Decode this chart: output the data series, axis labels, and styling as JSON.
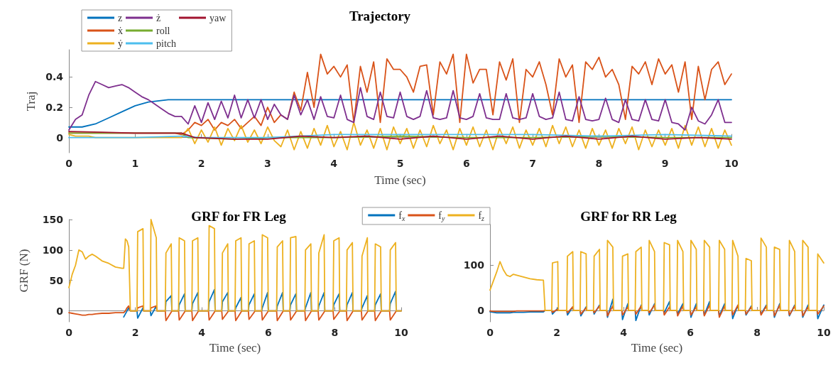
{
  "chart_data": [
    {
      "type": "line",
      "title": "Trajectory",
      "xlabel": "Time (sec)",
      "ylabel": "Traj",
      "xlim": [
        0,
        10
      ],
      "xticks": [
        0,
        1,
        2,
        3,
        4,
        5,
        6,
        7,
        8,
        9,
        10
      ],
      "ylim": [
        -0.1,
        0.58
      ],
      "yticks": [
        0,
        0.2,
        0.4
      ],
      "legend": "top left",
      "x": [
        0,
        0.1,
        0.2,
        0.3,
        0.4,
        0.5,
        0.6,
        0.7,
        0.8,
        0.9,
        1,
        1.1,
        1.2,
        1.3,
        1.4,
        1.5,
        1.6,
        1.7,
        1.8,
        1.9,
        2,
        2.1,
        2.2,
        2.3,
        2.4,
        2.5,
        2.6,
        2.7,
        2.8,
        2.9,
        3,
        3.1,
        3.2,
        3.3,
        3.4,
        3.5,
        3.6,
        3.7,
        3.8,
        3.9,
        4,
        4.1,
        4.2,
        4.3,
        4.4,
        4.5,
        4.6,
        4.7,
        4.8,
        4.9,
        5,
        5.1,
        5.2,
        5.3,
        5.4,
        5.5,
        5.6,
        5.7,
        5.8,
        5.9,
        6,
        6.1,
        6.2,
        6.3,
        6.4,
        6.5,
        6.6,
        6.7,
        6.8,
        6.9,
        7,
        7.1,
        7.2,
        7.3,
        7.4,
        7.5,
        7.6,
        7.7,
        7.8,
        7.9,
        8,
        8.1,
        8.2,
        8.3,
        8.4,
        8.5,
        8.6,
        8.7,
        8.8,
        8.9,
        9,
        9.1,
        9.2,
        9.3,
        9.4,
        9.5,
        9.6,
        9.7,
        9.8,
        9.9,
        10
      ],
      "series": [
        {
          "name": "z",
          "color": "#0072bd",
          "x": [
            0,
            0.2,
            0.4,
            0.6,
            0.8,
            1,
            1.2,
            1.5,
            2,
            4,
            6,
            8,
            10
          ],
          "values": [
            0.07,
            0.07,
            0.09,
            0.13,
            0.17,
            0.21,
            0.235,
            0.25,
            0.25,
            0.25,
            0.25,
            0.25,
            0.25
          ]
        },
        {
          "name": "ẋ",
          "color": "#d95319",
          "values": [
            0.03,
            0.03,
            0.03,
            0.03,
            0.03,
            0.03,
            0.03,
            0.03,
            0.03,
            0.03,
            0.03,
            0.03,
            0.03,
            0.03,
            0.03,
            0.03,
            0.03,
            0.02,
            0.05,
            0.1,
            0.08,
            0.12,
            0.05,
            0.1,
            0.08,
            0.12,
            0.06,
            0.1,
            0.14,
            0.08,
            0.2,
            0.1,
            0.15,
            0.12,
            0.3,
            0.18,
            0.43,
            0.2,
            0.55,
            0.42,
            0.47,
            0.4,
            0.48,
            0.1,
            0.47,
            0.3,
            0.5,
            0.1,
            0.52,
            0.45,
            0.45,
            0.4,
            0.3,
            0.47,
            0.48,
            0.15,
            0.5,
            0.42,
            0.55,
            0.1,
            0.55,
            0.36,
            0.45,
            0.45,
            0.15,
            0.5,
            0.38,
            0.52,
            0.1,
            0.45,
            0.4,
            0.5,
            0.35,
            0.15,
            0.52,
            0.4,
            0.48,
            0.1,
            0.5,
            0.45,
            0.53,
            0.4,
            0.45,
            0.35,
            0.12,
            0.47,
            0.42,
            0.5,
            0.35,
            0.52,
            0.42,
            0.48,
            0.3,
            0.5,
            0.12,
            0.47,
            0.25,
            0.45,
            0.5,
            0.35,
            0.42
          ]
        },
        {
          "name": "ẏ",
          "color": "#edb120",
          "values": [
            0.02,
            0.01,
            0.01,
            0.01,
            0,
            0,
            0,
            0,
            0,
            0,
            0,
            0,
            0,
            0,
            0,
            0,
            0,
            0,
            0.06,
            -0.04,
            0.05,
            -0.03,
            0.07,
            -0.05,
            0.06,
            -0.02,
            0.08,
            -0.03,
            0.05,
            -0.04,
            0.07,
            -0.02,
            -0.06,
            0.05,
            -0.08,
            0.04,
            -0.07,
            0.06,
            -0.05,
            0.08,
            -0.06,
            0.04,
            -0.08,
            0.1,
            -0.05,
            0.05,
            -0.07,
            0.06,
            -0.08,
            0.07,
            -0.04,
            0.06,
            -0.07,
            0.05,
            -0.06,
            0.08,
            -0.04,
            0.05,
            -0.08,
            0.06,
            -0.05,
            0.07,
            -0.06,
            0.05,
            -0.08,
            0.06,
            -0.04,
            0.07,
            -0.07,
            0.05,
            -0.05,
            0.06,
            -0.06,
            0.08,
            -0.04,
            0.07,
            -0.06,
            0.05,
            -0.07,
            0.06,
            -0.05,
            0.05,
            -0.07,
            0.06,
            -0.04,
            0.07,
            -0.08,
            0.05,
            -0.06,
            0.05,
            -0.05,
            0.06,
            -0.07,
            0.08,
            -0.05,
            0.07,
            -0.06,
            0.06,
            -0.07,
            0.05,
            -0.05
          ]
        },
        {
          "name": "ż",
          "color": "#7e2f8e",
          "values": [
            0.05,
            0.12,
            0.15,
            0.28,
            0.37,
            0.35,
            0.33,
            0.34,
            0.35,
            0.33,
            0.3,
            0.27,
            0.25,
            0.22,
            0.19,
            0.16,
            0.14,
            0.14,
            0.09,
            0.21,
            0.1,
            0.23,
            0.12,
            0.24,
            0.13,
            0.28,
            0.13,
            0.25,
            0.13,
            0.25,
            0.12,
            0.22,
            0.15,
            0.12,
            0.28,
            0.15,
            0.25,
            0.12,
            0.27,
            0.14,
            0.13,
            0.28,
            0.12,
            0.1,
            0.33,
            0.14,
            0.12,
            0.3,
            0.14,
            0.13,
            0.3,
            0.14,
            0.12,
            0.14,
            0.31,
            0.13,
            0.12,
            0.13,
            0.31,
            0.13,
            0.12,
            0.14,
            0.29,
            0.13,
            0.12,
            0.12,
            0.29,
            0.13,
            0.12,
            0.13,
            0.29,
            0.14,
            0.12,
            0.13,
            0.3,
            0.12,
            0.11,
            0.27,
            0.12,
            0.11,
            0.12,
            0.26,
            0.12,
            0.1,
            0.25,
            0.12,
            0.11,
            0.25,
            0.12,
            0.11,
            0.25,
            0.1,
            0.09,
            0.05,
            0.2,
            0.11,
            0.09,
            0.15,
            0.25,
            0.1,
            0.1
          ]
        },
        {
          "name": "roll",
          "color": "#77ac30",
          "x": [
            0,
            0.5,
            1,
            1.7,
            1.8,
            2.5,
            3,
            4,
            5,
            6,
            7,
            8,
            9,
            10
          ],
          "values": [
            0.03,
            0.03,
            0.03,
            0.03,
            0,
            -0.01,
            0,
            0,
            0.01,
            0,
            0,
            0.01,
            0,
            0
          ]
        },
        {
          "name": "pitch",
          "color": "#4dbeee",
          "x": [
            0,
            1,
            1.7,
            2,
            3,
            4,
            5,
            6,
            7,
            8,
            9,
            10
          ],
          "values": [
            0,
            0,
            0.01,
            0,
            0,
            0.02,
            0.02,
            0.02,
            0.02,
            0.01,
            0.02,
            0.01
          ]
        },
        {
          "name": "yaw",
          "color": "#a2142f",
          "x": [
            0,
            0.5,
            1,
            1.7,
            1.9,
            2.5,
            3,
            3.5,
            4,
            4.5,
            5,
            5.5,
            6,
            6.5,
            7,
            7.5,
            8,
            8.5,
            9,
            9.5,
            10
          ],
          "values": [
            0.04,
            0.035,
            0.03,
            0.03,
            0,
            -0.01,
            -0.01,
            0.01,
            0,
            0.01,
            -0.01,
            0.01,
            -0.01,
            0.01,
            -0.01,
            0.01,
            -0.01,
            0.01,
            -0.01,
            0,
            -0.01
          ]
        }
      ]
    },
    {
      "type": "line",
      "title": "GRF for FR Leg",
      "xlabel": "Time (sec)",
      "ylabel": "GRF (N)",
      "xlim": [
        0,
        10
      ],
      "xticks": [
        0,
        2,
        4,
        6,
        8,
        10
      ],
      "ylim": [
        -18,
        150
      ],
      "yticks": [
        0,
        50,
        100,
        150
      ],
      "legend": "top right",
      "x": [
        0,
        0.1,
        0.2,
        0.3,
        0.4,
        0.5,
        0.6,
        0.7,
        0.8,
        1,
        1.2,
        1.4,
        1.6,
        1.65,
        1.7,
        1.75,
        1.8,
        1.85,
        2.05,
        2.07,
        2.23,
        2.25,
        2.45,
        2.47,
        2.63,
        2.65,
        2.9,
        2.92,
        3.08,
        3.1,
        3.3,
        3.32,
        3.48,
        3.5,
        3.7,
        3.72,
        3.88,
        3.9,
        4.2,
        4.22,
        4.38,
        4.4,
        4.6,
        4.62,
        4.78,
        4.8,
        5,
        5.02,
        5.18,
        5.2,
        5.4,
        5.42,
        5.58,
        5.6,
        5.8,
        5.82,
        5.98,
        6,
        6.25,
        6.27,
        6.43,
        6.45,
        6.65,
        6.67,
        6.83,
        6.85,
        7.1,
        7.12,
        7.28,
        7.3,
        7.5,
        7.52,
        7.68,
        7.7,
        7.95,
        7.97,
        8.13,
        8.15,
        8.35,
        8.37,
        8.53,
        8.55,
        8.8,
        8.82,
        8.98,
        9,
        9.2,
        9.22,
        9.38,
        9.4,
        9.65,
        9.67,
        9.83,
        9.85,
        10
      ],
      "series": [
        {
          "name": "f$_{x}$",
          "color": "#0072bd",
          "values": [
            null,
            null,
            null,
            null,
            null,
            null,
            null,
            null,
            null,
            null,
            null,
            null,
            null,
            -10,
            -5,
            0,
            5,
            0,
            0,
            -12,
            5,
            0,
            0,
            -8,
            8,
            0,
            0,
            15,
            25,
            0,
            0,
            10,
            28,
            0,
            0,
            12,
            30,
            0,
            0,
            15,
            35,
            0,
            0,
            15,
            30,
            0,
            0,
            5,
            22,
            0,
            0,
            10,
            28,
            0,
            0,
            5,
            30,
            0,
            0,
            8,
            30,
            0,
            0,
            10,
            28,
            0,
            0,
            5,
            30,
            0,
            0,
            8,
            30,
            0,
            0,
            10,
            28,
            0,
            0,
            10,
            30,
            0,
            0,
            5,
            25,
            0,
            0,
            10,
            28,
            0,
            0,
            12,
            32,
            0,
            0
          ]
        },
        {
          "name": "f$_{y}$",
          "color": "#d95319",
          "values": [
            -3,
            -4,
            -5,
            -6,
            -7,
            -7,
            -6,
            -6,
            -5,
            -4,
            -4,
            -3,
            -3,
            -3,
            0,
            5,
            8,
            0,
            0,
            5,
            8,
            0,
            0,
            5,
            8,
            0,
            0,
            -16,
            -2,
            0,
            0,
            -15,
            -2,
            0,
            0,
            -16,
            -2,
            0,
            0,
            -15,
            -2,
            0,
            0,
            -14,
            -2,
            0,
            0,
            -16,
            -2,
            0,
            0,
            -14,
            -2,
            0,
            0,
            -15,
            -2,
            0,
            0,
            -16,
            -2,
            0,
            0,
            -15,
            -2,
            0,
            0,
            -16,
            -2,
            0,
            0,
            -15,
            -2,
            0,
            0,
            -14,
            -2,
            0,
            0,
            -16,
            -2,
            0,
            0,
            -15,
            -2,
            0,
            0,
            -16,
            -2,
            0,
            0,
            -15,
            -2,
            0,
            0
          ]
        },
        {
          "name": "f$_{z}$",
          "color": "#edb120",
          "values": [
            38,
            60,
            75,
            100,
            97,
            85,
            90,
            93,
            90,
            82,
            78,
            72,
            70,
            70,
            118,
            115,
            105,
            0,
            0,
            130,
            135,
            0,
            0,
            150,
            120,
            0,
            0,
            95,
            110,
            0,
            0,
            120,
            115,
            0,
            0,
            115,
            120,
            0,
            0,
            140,
            135,
            0,
            0,
            95,
            110,
            0,
            0,
            115,
            120,
            0,
            0,
            110,
            115,
            0,
            0,
            125,
            120,
            0,
            0,
            105,
            115,
            0,
            0,
            120,
            122,
            0,
            0,
            100,
            110,
            0,
            0,
            95,
            125,
            0,
            0,
            115,
            120,
            0,
            0,
            100,
            112,
            0,
            0,
            90,
            120,
            0,
            0,
            110,
            105,
            0,
            0,
            100,
            112,
            0,
            0
          ]
        }
      ]
    },
    {
      "type": "line",
      "title": "GRF for RR Leg",
      "xlabel": "Time (sec)",
      "xlim": [
        0,
        10
      ],
      "xticks": [
        0,
        2,
        4,
        6,
        8,
        10
      ],
      "ylim": [
        -25,
        190
      ],
      "yticks": [
        0,
        100
      ],
      "x": [
        0,
        0.1,
        0.2,
        0.3,
        0.4,
        0.5,
        0.6,
        0.7,
        0.8,
        1,
        1.2,
        1.4,
        1.6,
        1.65,
        1.85,
        1.87,
        2.03,
        2.05,
        2.3,
        2.32,
        2.48,
        2.5,
        2.7,
        2.72,
        2.88,
        2.9,
        3.1,
        3.12,
        3.28,
        3.3,
        3.5,
        3.52,
        3.68,
        3.7,
        3.95,
        3.97,
        4.13,
        4.15,
        4.35,
        4.37,
        4.53,
        4.55,
        4.75,
        4.77,
        4.93,
        4.95,
        5.2,
        5.22,
        5.38,
        5.4,
        5.6,
        5.62,
        5.78,
        5.8,
        6,
        6.02,
        6.18,
        6.2,
        6.4,
        6.42,
        6.58,
        6.6,
        6.85,
        6.87,
        7.03,
        7.05,
        7.25,
        7.27,
        7.43,
        7.45,
        7.65,
        7.67,
        7.83,
        7.85,
        8.1,
        8.12,
        8.28,
        8.3,
        8.5,
        8.52,
        8.68,
        8.7,
        8.95,
        8.97,
        9.13,
        9.15,
        9.35,
        9.37,
        9.53,
        9.55,
        9.8,
        9.82,
        10
      ],
      "series": [
        {
          "color": "#0072bd",
          "values": [
            -3,
            -4,
            -5,
            -5,
            -5,
            -5,
            -5,
            -4,
            -4,
            -4,
            -3,
            -3,
            -3,
            0,
            0,
            -8,
            5,
            0,
            0,
            -10,
            8,
            0,
            0,
            -12,
            8,
            0,
            0,
            -8,
            12,
            0,
            0,
            -15,
            25,
            0,
            0,
            -20,
            15,
            0,
            0,
            -22,
            12,
            0,
            0,
            -10,
            15,
            0,
            0,
            -5,
            20,
            0,
            0,
            -8,
            15,
            0,
            0,
            -15,
            15,
            0,
            0,
            -10,
            20,
            0,
            0,
            -12,
            15,
            0,
            0,
            -18,
            12,
            0,
            0,
            -10,
            10,
            0,
            0,
            -8,
            12,
            0,
            0,
            -15,
            15,
            0,
            0,
            -12,
            12,
            0,
            0,
            -15,
            12,
            0,
            0,
            -18,
            12
          ]
        },
        {
          "color": "#d95319",
          "values": [
            -1,
            -2,
            -2,
            -2,
            -2,
            -2,
            -2,
            -2,
            -1,
            -1,
            -1,
            -1,
            -1,
            0,
            0,
            -4,
            3,
            0,
            0,
            -5,
            8,
            0,
            0,
            -8,
            6,
            0,
            0,
            -5,
            10,
            0,
            0,
            -12,
            10,
            0,
            0,
            -10,
            8,
            0,
            0,
            -8,
            10,
            0,
            0,
            -5,
            12,
            0,
            0,
            -10,
            8,
            0,
            0,
            -12,
            10,
            0,
            0,
            -10,
            8,
            0,
            0,
            -12,
            12,
            0,
            0,
            -15,
            10,
            0,
            0,
            -10,
            12,
            0,
            0,
            -8,
            8,
            0,
            0,
            -10,
            10,
            0,
            0,
            -12,
            12,
            0,
            0,
            -10,
            10,
            0,
            0,
            -12,
            8,
            0,
            0,
            -8,
            10
          ]
        },
        {
          "color": "#edb120",
          "values": [
            45,
            65,
            85,
            108,
            90,
            78,
            75,
            80,
            78,
            74,
            70,
            68,
            67,
            0,
            0,
            105,
            108,
            0,
            0,
            120,
            130,
            0,
            0,
            130,
            125,
            0,
            0,
            120,
            135,
            0,
            0,
            155,
            140,
            0,
            0,
            120,
            125,
            0,
            0,
            130,
            140,
            0,
            0,
            155,
            130,
            0,
            0,
            150,
            145,
            0,
            0,
            155,
            130,
            0,
            0,
            155,
            135,
            0,
            0,
            155,
            140,
            0,
            0,
            155,
            135,
            0,
            0,
            155,
            120,
            0,
            0,
            115,
            110,
            0,
            0,
            160,
            140,
            0,
            0,
            140,
            135,
            0,
            0,
            155,
            130,
            0,
            0,
            155,
            140,
            0,
            0,
            125,
            105
          ]
        }
      ]
    }
  ]
}
